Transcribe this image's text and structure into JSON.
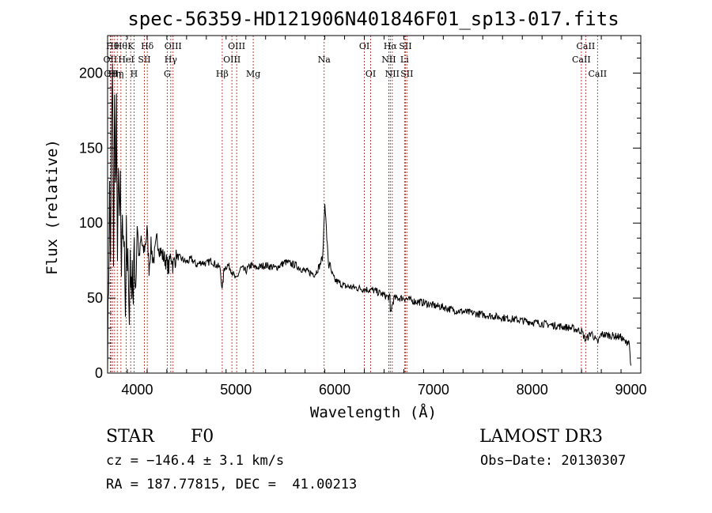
{
  "chart_data": {
    "type": "line",
    "title": "spec-56359-HD121906N401846F01_sp13-017.fits",
    "xlabel": "Wavelength (Å)",
    "ylabel": "Flux (relative)",
    "xlim": [
      3700,
      9100
    ],
    "ylim": [
      0,
      225
    ],
    "xticks": [
      4000,
      5000,
      6000,
      7000,
      8000,
      9000
    ],
    "yticks": [
      0,
      50,
      100,
      150,
      200
    ],
    "grid": false,
    "series": [
      {
        "name": "flux",
        "color": "#000000",
        "x": [
          3700,
          3710,
          3720,
          3730,
          3740,
          3750,
          3760,
          3770,
          3780,
          3790,
          3800,
          3810,
          3820,
          3830,
          3840,
          3850,
          3860,
          3870,
          3880,
          3890,
          3900,
          3910,
          3920,
          3930,
          3940,
          3950,
          3960,
          3970,
          3980,
          3990,
          4000,
          4020,
          4040,
          4060,
          4080,
          4100,
          4120,
          4140,
          4160,
          4180,
          4200,
          4230,
          4260,
          4290,
          4320,
          4340,
          4360,
          4400,
          4450,
          4500,
          4550,
          4600,
          4650,
          4700,
          4750,
          4800,
          4840,
          4861,
          4880,
          4920,
          4960,
          5000,
          5050,
          5100,
          5150,
          5200,
          5300,
          5400,
          5500,
          5600,
          5700,
          5800,
          5850,
          5880,
          5900,
          5920,
          5940,
          5950,
          5960,
          5980,
          6000,
          6050,
          6100,
          6200,
          6300,
          6400,
          6500,
          6560,
          6563,
          6600,
          6700,
          6800,
          6900,
          7000,
          7100,
          7200,
          7300,
          7400,
          7500,
          7600,
          7700,
          7800,
          7900,
          8000,
          8100,
          8200,
          8300,
          8400,
          8500,
          8540,
          8600,
          8662,
          8700,
          8800,
          8900,
          8950,
          8980,
          9000
        ],
        "values": [
          10,
          60,
          120,
          80,
          160,
          200,
          60,
          190,
          120,
          180,
          60,
          150,
          90,
          130,
          50,
          110,
          80,
          100,
          40,
          90,
          60,
          80,
          30,
          85,
          50,
          80,
          40,
          90,
          60,
          70,
          100,
          75,
          90,
          80,
          85,
          95,
          70,
          85,
          75,
          80,
          90,
          82,
          78,
          75,
          70,
          80,
          72,
          78,
          76,
          74,
          76,
          72,
          74,
          73,
          75,
          72,
          70,
          55,
          70,
          72,
          68,
          62,
          70,
          68,
          72,
          70,
          72,
          70,
          74,
          72,
          68,
          66,
          72,
          78,
          115,
          90,
          70,
          75,
          68,
          65,
          62,
          60,
          58,
          57,
          56,
          55,
          52,
          50,
          40,
          50,
          50,
          48,
          47,
          45,
          44,
          42,
          41,
          40,
          39,
          38,
          37,
          36,
          35,
          34,
          33,
          32,
          31,
          30,
          28,
          22,
          27,
          20,
          26,
          25,
          24,
          20,
          22,
          5
        ]
      }
    ],
    "lines": [
      {
        "x": 3727,
        "label": "OII",
        "row": 2
      },
      {
        "x": 3734,
        "label": "OII",
        "row": 3
      },
      {
        "x": 3750,
        "label": "Hθ",
        "row": 1
      },
      {
        "x": 3771,
        "label": "Hη",
        "row": 3
      },
      {
        "x": 3798,
        "label": "Hη",
        "row": 3
      },
      {
        "x": 3835,
        "label": "Hθ",
        "row": 1
      },
      {
        "x": 3889,
        "label": "HeI",
        "row": 2
      },
      {
        "x": 3934,
        "label": "K",
        "row": 1
      },
      {
        "x": 3968,
        "label": "H",
        "row": 3
      },
      {
        "x": 4072,
        "label": "SII",
        "row": 2
      },
      {
        "x": 4102,
        "label": "Hδ",
        "row": 1
      },
      {
        "x": 4304,
        "label": "G",
        "row": 3
      },
      {
        "x": 4340,
        "label": "Hγ",
        "row": 2
      },
      {
        "x": 4363,
        "label": "OIII",
        "row": 1
      },
      {
        "x": 4861,
        "label": "Hβ",
        "row": 3
      },
      {
        "x": 4959,
        "label": "OIII",
        "row": 2
      },
      {
        "x": 5007,
        "label": "OIII",
        "row": 1
      },
      {
        "x": 5175,
        "label": "Mg",
        "row": 3
      },
      {
        "x": 5893,
        "label": "Na",
        "row": 2
      },
      {
        "x": 6300,
        "label": "OI",
        "row": 1
      },
      {
        "x": 6364,
        "label": "OI",
        "row": 3
      },
      {
        "x": 6548,
        "label": "NII",
        "row": 2
      },
      {
        "x": 6563,
        "label": "Hα",
        "row": 1
      },
      {
        "x": 6583,
        "label": "NII",
        "row": 3
      },
      {
        "x": 6707,
        "label": "Li",
        "row": 2
      },
      {
        "x": 6716,
        "label": "SII",
        "row": 1
      },
      {
        "x": 6731,
        "label": "SII",
        "row": 3
      },
      {
        "x": 8498,
        "label": "CaII",
        "row": 2
      },
      {
        "x": 8542,
        "label": "CaII",
        "row": 1
      },
      {
        "x": 8662,
        "label": "CaII",
        "row": 3
      }
    ],
    "line_color": "#b03030"
  },
  "info": {
    "object_class": "STAR",
    "subclass": "F0",
    "survey": "LAMOST DR3",
    "cz": "cz = −146.4 ± 3.1 km/s",
    "obs_date": "Obs−Date: 20130307",
    "radec": "RA = 187.77815, DEC =  41.00213"
  }
}
